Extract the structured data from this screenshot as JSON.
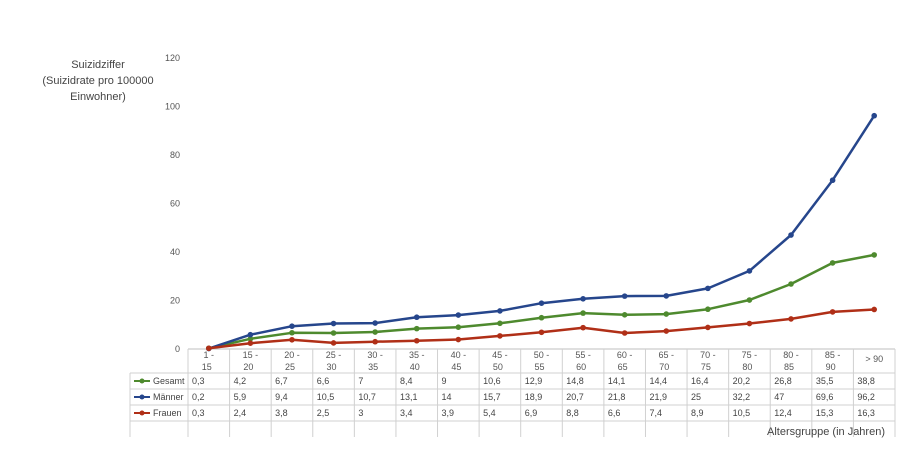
{
  "chart_data": {
    "type": "line",
    "ylabel": [
      "Suizidziffer",
      "(Suizidrate pro 100000",
      "Einwohner)"
    ],
    "xlabel": "Altersgruppe (in Jahren)",
    "ylim": [
      0,
      120
    ],
    "yticks": [
      0,
      20,
      40,
      60,
      80,
      100,
      120
    ],
    "grid": false,
    "legend": "data-table",
    "categories": [
      [
        "1 -",
        "15"
      ],
      [
        "15 -",
        "20"
      ],
      [
        "20 -",
        "25"
      ],
      [
        "25 -",
        "30"
      ],
      [
        "30 -",
        "35"
      ],
      [
        "35 -",
        "40"
      ],
      [
        "40 -",
        "45"
      ],
      [
        "45 -",
        "50"
      ],
      [
        "50 -",
        "55"
      ],
      [
        "55 -",
        "60"
      ],
      [
        "60 -",
        "65"
      ],
      [
        "65 -",
        "70"
      ],
      [
        "70 -",
        "75"
      ],
      [
        "75 -",
        "80"
      ],
      [
        "80 -",
        "85"
      ],
      [
        "85 -",
        "90"
      ],
      [
        "> 90"
      ]
    ],
    "series": [
      {
        "name": "Gesamt",
        "color": "#4e8a2e",
        "values": [
          0.3,
          4.2,
          6.7,
          6.6,
          7,
          8.4,
          9,
          10.6,
          12.9,
          14.8,
          14.1,
          14.4,
          16.4,
          20.2,
          26.8,
          35.5,
          38.8
        ],
        "labels": [
          "0,3",
          "4,2",
          "6,7",
          "6,6",
          "7",
          "8,4",
          "9",
          "10,6",
          "12,9",
          "14,8",
          "14,1",
          "14,4",
          "16,4",
          "20,2",
          "26,8",
          "35,5",
          "38,8"
        ]
      },
      {
        "name": "Männer",
        "color": "#26468c",
        "values": [
          0.2,
          5.9,
          9.4,
          10.5,
          10.7,
          13.1,
          14,
          15.7,
          18.9,
          20.7,
          21.8,
          21.9,
          25,
          32.2,
          47,
          69.6,
          96.2
        ],
        "labels": [
          "0,2",
          "5,9",
          "9,4",
          "10,5",
          "10,7",
          "13,1",
          "14",
          "15,7",
          "18,9",
          "20,7",
          "21,8",
          "21,9",
          "25",
          "32,2",
          "47",
          "69,6",
          "96,2"
        ]
      },
      {
        "name": "Frauen",
        "color": "#b02f17",
        "values": [
          0.3,
          2.4,
          3.8,
          2.5,
          3,
          3.4,
          3.9,
          5.4,
          6.9,
          8.8,
          6.6,
          7.4,
          8.9,
          10.5,
          12.4,
          15.3,
          16.3
        ],
        "labels": [
          "0,3",
          "2,4",
          "3,8",
          "2,5",
          "3",
          "3,4",
          "3,9",
          "5,4",
          "6,9",
          "8,8",
          "6,6",
          "7,4",
          "8,9",
          "10,5",
          "12,4",
          "15,3",
          "16,3"
        ]
      }
    ]
  }
}
